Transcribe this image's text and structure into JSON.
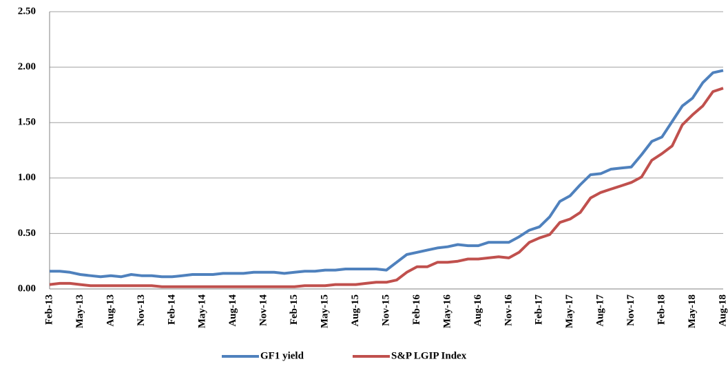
{
  "chart_data": {
    "type": "line",
    "categories": [
      "Feb-13",
      null,
      null,
      "May-13",
      null,
      null,
      "Aug-13",
      null,
      null,
      "Nov-13",
      null,
      null,
      "Feb-14",
      null,
      null,
      "May-14",
      null,
      null,
      "Aug-14",
      null,
      null,
      "Nov-14",
      null,
      null,
      "Feb-15",
      null,
      null,
      "May-15",
      null,
      null,
      "Aug-15",
      null,
      null,
      "Nov-15",
      null,
      null,
      "Feb-16",
      null,
      null,
      "May-16",
      null,
      null,
      "Aug-16",
      null,
      null,
      "Nov-16",
      null,
      null,
      "Feb-17",
      null,
      null,
      "May-17",
      null,
      null,
      "Aug-17",
      null,
      null,
      "Nov-17",
      null,
      null,
      "Feb-18",
      null,
      null,
      "May-18",
      null,
      null,
      "Aug-18"
    ],
    "series": [
      {
        "name": "GF1 yield",
        "color": "#4f81bd",
        "values": [
          0.16,
          0.16,
          0.15,
          0.13,
          0.12,
          0.11,
          0.12,
          0.11,
          0.13,
          0.12,
          0.12,
          0.11,
          0.11,
          0.12,
          0.13,
          0.13,
          0.13,
          0.14,
          0.14,
          0.14,
          0.15,
          0.15,
          0.15,
          0.14,
          0.15,
          0.16,
          0.16,
          0.17,
          0.17,
          0.18,
          0.18,
          0.18,
          0.18,
          0.17,
          0.24,
          0.31,
          0.33,
          0.35,
          0.37,
          0.38,
          0.4,
          0.39,
          0.39,
          0.42,
          0.42,
          0.42,
          0.47,
          0.53,
          0.56,
          0.65,
          0.79,
          0.84,
          0.94,
          1.03,
          1.04,
          1.08,
          1.09,
          1.1,
          1.21,
          1.33,
          1.37,
          1.51,
          1.65,
          1.72,
          1.86,
          1.95,
          1.97
        ]
      },
      {
        "name": "S&P LGIP Index",
        "color": "#c0504d",
        "values": [
          0.04,
          0.05,
          0.05,
          0.04,
          0.03,
          0.03,
          0.03,
          0.03,
          0.03,
          0.03,
          0.03,
          0.02,
          0.02,
          0.02,
          0.02,
          0.02,
          0.02,
          0.02,
          0.02,
          0.02,
          0.02,
          0.02,
          0.02,
          0.02,
          0.02,
          0.03,
          0.03,
          0.03,
          0.04,
          0.04,
          0.04,
          0.05,
          0.06,
          0.06,
          0.08,
          0.15,
          0.2,
          0.2,
          0.24,
          0.24,
          0.25,
          0.27,
          0.27,
          0.28,
          0.29,
          0.28,
          0.33,
          0.42,
          0.46,
          0.49,
          0.6,
          0.63,
          0.69,
          0.82,
          0.87,
          0.9,
          0.93,
          0.96,
          1.01,
          1.16,
          1.22,
          1.29,
          1.48,
          1.57,
          1.65,
          1.78,
          1.81
        ]
      }
    ],
    "ylim": [
      0,
      2.5
    ],
    "yticks": [
      {
        "value": 0,
        "label": "0.00"
      },
      {
        "value": 0.5,
        "label": "0.50"
      },
      {
        "value": 1,
        "label": "1.00"
      },
      {
        "value": 1.5,
        "label": "1.50"
      },
      {
        "value": 2,
        "label": "2.00"
      },
      {
        "value": 2.5,
        "label": "2.50"
      }
    ],
    "grid": true,
    "legend": "bottom"
  }
}
